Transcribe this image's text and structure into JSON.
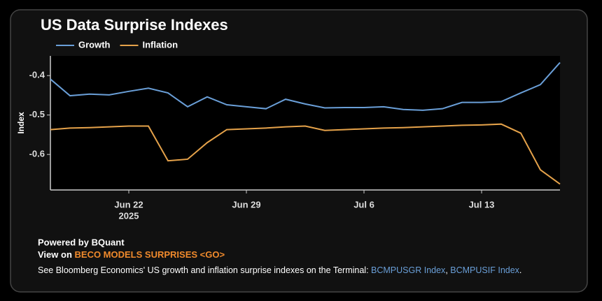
{
  "title": "US Data Surprise Indexes",
  "chart_data": {
    "type": "line",
    "y_label": "Index",
    "categories": [
      null,
      null,
      null,
      null,
      "Jun 22",
      null,
      null,
      null,
      null,
      null,
      "Jun 29",
      null,
      null,
      null,
      null,
      null,
      "Jul 6",
      null,
      null,
      null,
      null,
      null,
      "Jul 13",
      null,
      null,
      null,
      null
    ],
    "year_label": "2025",
    "series": [
      {
        "name": "Growth",
        "color": "#6a9fd8",
        "values": [
          -0.409,
          -0.451,
          -0.447,
          -0.449,
          -0.44,
          -0.432,
          -0.444,
          -0.479,
          -0.454,
          -0.474,
          -0.479,
          -0.484,
          -0.46,
          -0.472,
          -0.482,
          -0.481,
          -0.481,
          -0.479,
          -0.486,
          -0.488,
          -0.484,
          -0.468,
          -0.468,
          -0.466,
          -0.444,
          -0.423,
          -0.367
        ]
      },
      {
        "name": "Inflation",
        "color": "#e5a24a",
        "values": [
          -0.537,
          -0.533,
          -0.532,
          -0.53,
          -0.528,
          -0.528,
          -0.616,
          -0.612,
          -0.57,
          -0.537,
          -0.535,
          -0.533,
          -0.53,
          -0.528,
          -0.539,
          -0.537,
          -0.535,
          -0.533,
          -0.532,
          -0.53,
          -0.528,
          -0.526,
          -0.525,
          -0.523,
          -0.546,
          -0.639,
          -0.675
        ]
      }
    ],
    "ylim": [
      -0.69,
      -0.35
    ],
    "yticks": [
      -0.4,
      -0.5,
      -0.6
    ],
    "grid": false,
    "legend": "top-left"
  },
  "footer": {
    "powered": "Powered by BQuant",
    "view_prefix": "View on",
    "view_link": "BECO MODELS SURPRISES <GO>",
    "note": "See Bloomberg Economics' US growth and inflation surprise indexes on the Terminal:",
    "link1": "BCMPUSGR Index",
    "sep": ",",
    "link2": "BCMPUSIF Index",
    "end": "."
  }
}
